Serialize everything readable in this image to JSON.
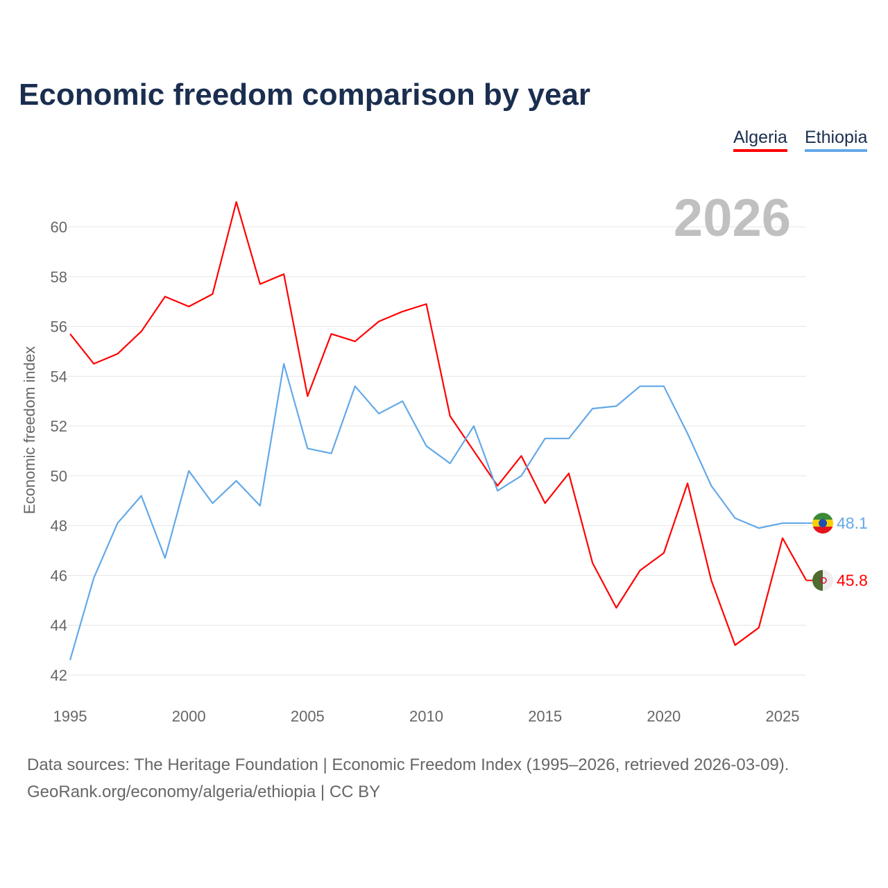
{
  "title": "Economic freedom comparison by year",
  "legend": [
    "Algeria",
    "Ethiopia"
  ],
  "year_label": "2026",
  "sources": {
    "line1": "Data sources: The Heritage Foundation | Economic Freedom Index (1995–2026, retrieved 2026-03-09).",
    "line2": "GeoRank.org/economy/algeria/ethiopia | CC BY"
  },
  "chart_data": {
    "type": "line",
    "title": "Economic freedom comparison by year",
    "xlabel": "",
    "ylabel": "Economic freedom index",
    "xlim": [
      1995,
      2026
    ],
    "ylim": [
      42,
      61
    ],
    "x_ticks": [
      1995,
      2000,
      2005,
      2010,
      2015,
      2020,
      2025
    ],
    "y_ticks": [
      42,
      44,
      46,
      48,
      50,
      52,
      54,
      56,
      58,
      60
    ],
    "grid": true,
    "legend_position": "top-right",
    "x": [
      1995,
      1996,
      1997,
      1998,
      1999,
      2000,
      2001,
      2002,
      2003,
      2004,
      2005,
      2006,
      2007,
      2008,
      2009,
      2010,
      2011,
      2012,
      2013,
      2014,
      2015,
      2016,
      2017,
      2018,
      2019,
      2020,
      2021,
      2022,
      2023,
      2024,
      2025,
      2026
    ],
    "series": [
      {
        "name": "Algeria",
        "color": "#ff0000",
        "end_label": "45.8",
        "values": [
          55.7,
          54.5,
          54.9,
          55.8,
          57.2,
          56.8,
          57.3,
          61.0,
          57.7,
          58.1,
          53.2,
          55.7,
          55.4,
          56.2,
          56.6,
          56.9,
          52.4,
          51.0,
          49.6,
          50.8,
          48.9,
          50.1,
          46.5,
          44.7,
          46.2,
          46.9,
          49.7,
          45.8,
          43.2,
          43.9,
          47.5,
          45.8
        ]
      },
      {
        "name": "Ethiopia",
        "color": "#63a8e8",
        "end_label": "48.1",
        "values": [
          42.6,
          45.9,
          48.1,
          49.2,
          46.7,
          50.2,
          48.9,
          49.8,
          48.8,
          54.5,
          51.1,
          50.9,
          53.6,
          52.5,
          53.0,
          51.2,
          50.5,
          52.0,
          49.4,
          50.0,
          51.5,
          51.5,
          52.7,
          52.8,
          53.6,
          53.6,
          51.7,
          49.6,
          48.3,
          47.9,
          48.1,
          48.1
        ]
      }
    ]
  }
}
